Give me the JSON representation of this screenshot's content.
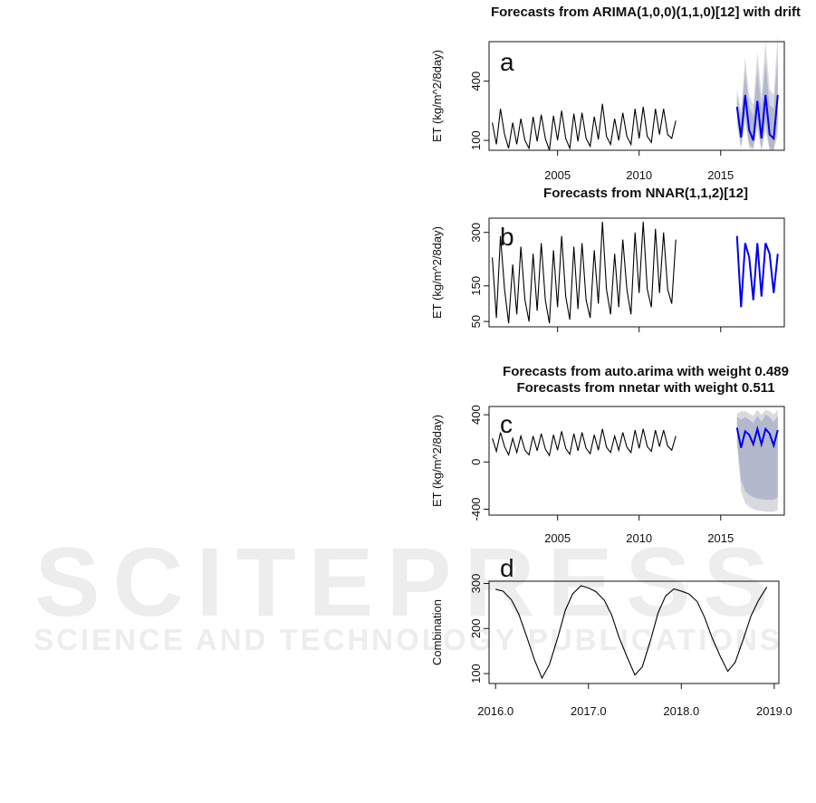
{
  "watermark": {
    "title": "SCITEPRESS",
    "subtitle": "SCIENCE AND TECHNOLOGY PUBLICATIONS"
  },
  "chart_data": [
    {
      "id": "a",
      "panel_label": "a",
      "type": "line",
      "title": "Forecasts from ARIMA(1,0,0)(1,1,0)[12] with drift",
      "ylabel": "ET (kg/m^2/8day)",
      "xlim": [
        2000.8,
        2018.9
      ],
      "ylim": [
        50,
        600
      ],
      "yticks": [
        100,
        400
      ],
      "xticks": [
        2005,
        2010,
        2015
      ],
      "history": {
        "start": 2001.0,
        "step": 0.25,
        "values": [
          190,
          80,
          260,
          130,
          60,
          190,
          80,
          210,
          100,
          60,
          220,
          95,
          230,
          110,
          50,
          225,
          100,
          250,
          110,
          60,
          235,
          95,
          240,
          110,
          70,
          220,
          105,
          285,
          120,
          80,
          210,
          100,
          240,
          120,
          80,
          260,
          110,
          270,
          120,
          90,
          260,
          130,
          260,
          130,
          110,
          200
        ]
      },
      "forecast": {
        "start": 2016.0,
        "step": 0.25,
        "values": [
          270,
          115,
          330,
          150,
          100,
          300,
          110,
          330,
          130,
          110,
          330
        ]
      },
      "intervals": {
        "start": 2016.0,
        "step": 0.25,
        "lo80": [
          210,
          70,
          230,
          80,
          60,
          200,
          50,
          200,
          60,
          50,
          190
        ],
        "hi80": [
          330,
          200,
          450,
          270,
          220,
          460,
          260,
          500,
          280,
          260,
          530
        ],
        "lo95": [
          180,
          55,
          190,
          60,
          55,
          160,
          50,
          150,
          50,
          50,
          130
        ],
        "hi95": [
          360,
          250,
          520,
          330,
          280,
          550,
          330,
          600,
          360,
          330,
          640
        ]
      },
      "colors": {
        "history": "#000000",
        "forecast": "#0000ee",
        "band80": "#b4b8cc",
        "band95": "#d9d9df"
      }
    },
    {
      "id": "b",
      "panel_label": "b",
      "type": "line",
      "title": "Forecasts from NNAR(1,1,2)[12]",
      "ylabel": "ET (kg/m^2/8day)",
      "xlim": [
        2000.8,
        2018.9
      ],
      "ylim": [
        35,
        340
      ],
      "yticks": [
        50,
        150,
        300
      ],
      "xticks": [],
      "history": {
        "start": 2001.0,
        "step": 0.25,
        "values": [
          230,
          60,
          290,
          140,
          45,
          210,
          70,
          260,
          110,
          50,
          240,
          80,
          270,
          110,
          45,
          250,
          90,
          290,
          120,
          55,
          260,
          85,
          270,
          110,
          60,
          250,
          100,
          330,
          140,
          70,
          240,
          90,
          280,
          140,
          70,
          300,
          130,
          330,
          140,
          90,
          310,
          130,
          300,
          140,
          100,
          280
        ]
      },
      "forecast": {
        "start": 2016.0,
        "step": 0.25,
        "values": [
          290,
          90,
          270,
          230,
          110,
          270,
          120,
          270,
          240,
          130,
          240
        ]
      },
      "colors": {
        "history": "#000000",
        "forecast": "#0000ee"
      }
    },
    {
      "id": "c",
      "panel_label": "c",
      "type": "line",
      "title": "Forecasts from auto.arima with weight 0.489",
      "subtitle": "Forecasts from nnetar with weight 0.511",
      "ylabel": "ET (kg/m^2/8day)",
      "xlim": [
        2000.8,
        2018.9
      ],
      "ylim": [
        -450,
        470
      ],
      "yticks": [
        -400,
        0,
        400
      ],
      "xticks": [
        2005,
        2010,
        2015
      ],
      "history": {
        "start": 2001.0,
        "step": 0.25,
        "values": [
          200,
          90,
          250,
          130,
          60,
          200,
          80,
          220,
          100,
          60,
          220,
          95,
          240,
          110,
          55,
          230,
          100,
          260,
          115,
          65,
          240,
          95,
          250,
          115,
          70,
          230,
          100,
          280,
          125,
          80,
          220,
          100,
          250,
          125,
          80,
          270,
          115,
          280,
          130,
          90,
          270,
          130,
          270,
          135,
          100,
          220
        ]
      },
      "forecast": {
        "start": 2016.0,
        "step": 0.25,
        "values": [
          290,
          120,
          260,
          230,
          150,
          280,
          150,
          280,
          240,
          140,
          270
        ]
      },
      "intervals": {
        "start": 2016.0,
        "step": 0.25,
        "lo80": [
          180,
          -150,
          -250,
          -280,
          -300,
          -310,
          -315,
          -320,
          -320,
          -320,
          -300
        ],
        "hi80": [
          380,
          360,
          380,
          360,
          330,
          390,
          340,
          400,
          380,
          340,
          390
        ],
        "lo95": [
          150,
          -250,
          -350,
          -380,
          -400,
          -410,
          -415,
          -420,
          -420,
          -420,
          -410
        ],
        "hi95": [
          410,
          430,
          430,
          410,
          390,
          440,
          400,
          440,
          430,
          400,
          440
        ]
      },
      "colors": {
        "history": "#000000",
        "forecast": "#0000ee",
        "band80": "#b4b8cc",
        "band95": "#d9d9df"
      }
    },
    {
      "id": "d",
      "panel_label": "d",
      "type": "line",
      "title": "",
      "ylabel": "Combination",
      "xlim": [
        2015.93,
        2019.05
      ],
      "ylim": [
        78,
        305
      ],
      "yticks": [
        100,
        200,
        300
      ],
      "xticks": [
        "2016.0",
        "2017.0",
        "2018.0",
        "2019.0"
      ],
      "series": [
        {
          "x": [
            2016.0,
            2016.08,
            2016.17,
            2016.25,
            2016.33,
            2016.42,
            2016.5,
            2016.58,
            2016.67,
            2016.75,
            2016.83,
            2016.92,
            2017.0,
            2017.08,
            2017.17,
            2017.25,
            2017.33,
            2017.42,
            2017.5,
            2017.58,
            2017.67,
            2017.75,
            2017.83,
            2017.92,
            2018.0,
            2018.08,
            2018.17,
            2018.25,
            2018.33,
            2018.42,
            2018.5,
            2018.58,
            2018.67,
            2018.75,
            2018.83,
            2018.92
          ],
          "y": [
            287,
            283,
            264,
            232,
            185,
            130,
            90,
            120,
            180,
            240,
            277,
            295,
            290,
            282,
            263,
            230,
            180,
            135,
            97,
            115,
            175,
            235,
            272,
            288,
            283,
            277,
            260,
            225,
            180,
            138,
            105,
            125,
            178,
            228,
            262,
            292
          ]
        }
      ],
      "colors": {
        "history": "#000000"
      }
    }
  ]
}
